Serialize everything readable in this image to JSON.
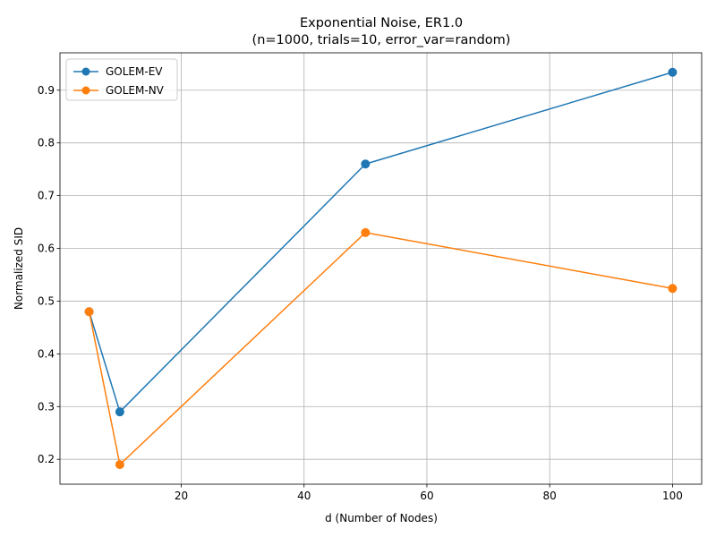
{
  "chart_data": {
    "type": "line",
    "title": "Exponential Noise, ER1.0",
    "subtitle": "(n=1000, trials=10, error_var=random)",
    "xlabel": "d (Number of Nodes)",
    "ylabel": "Normalized SID",
    "xlim": [
      0.25,
      104.75
    ],
    "ylim": [
      0.1528,
      0.9709
    ],
    "xticks": [
      20,
      40,
      60,
      80,
      100
    ],
    "yticks": [
      0.2,
      0.3,
      0.4,
      0.5,
      0.6,
      0.7,
      0.8,
      0.9
    ],
    "grid": true,
    "legend_position": "top-left",
    "x": [
      5,
      10,
      50,
      100
    ],
    "series": [
      {
        "name": "GOLEM-EV",
        "values": [
          0.48,
          0.29,
          0.76,
          0.934
        ],
        "color": "#1f77b4",
        "marker": "circle"
      },
      {
        "name": "GOLEM-NV",
        "values": [
          0.48,
          0.19,
          0.63,
          0.524
        ],
        "color": "#ff7f0e",
        "marker": "circle"
      }
    ]
  }
}
